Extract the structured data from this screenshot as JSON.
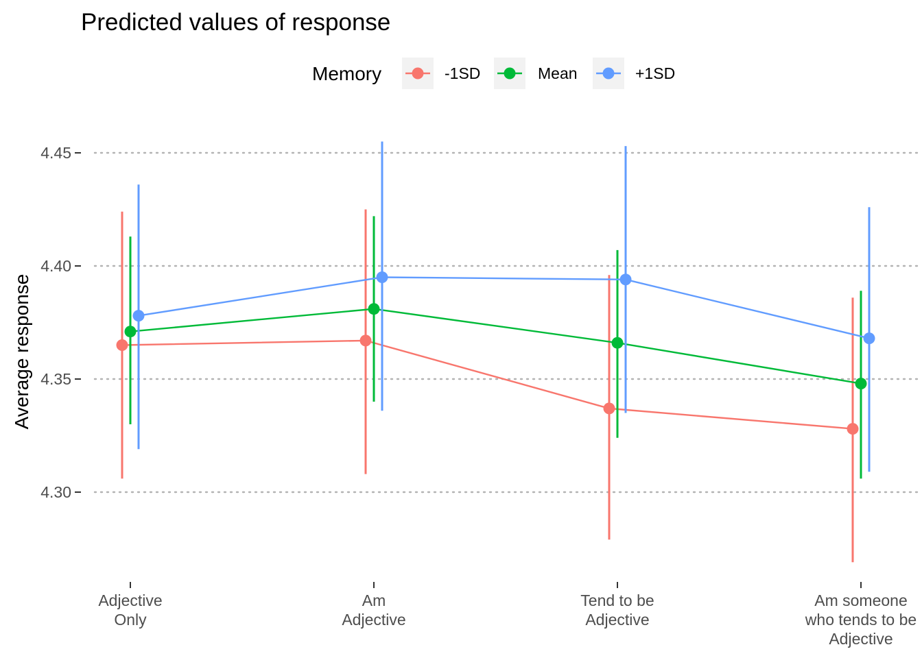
{
  "chart_data": {
    "type": "line",
    "title": "Predicted values of response",
    "xlabel": "",
    "ylabel": "Average response",
    "legend": {
      "title": "Memory",
      "position": "top"
    },
    "grid": {
      "major_y": true,
      "style": "dotted"
    },
    "ylim": [
      4.265,
      4.455
    ],
    "yticks": [
      4.3,
      4.35,
      4.4,
      4.45
    ],
    "ytick_labels": [
      "4.30",
      "4.35",
      "4.40",
      "4.45"
    ],
    "categories": [
      [
        "Adjective",
        "Only"
      ],
      [
        "Am",
        "Adjective"
      ],
      [
        "Tend to be",
        "Adjective"
      ],
      [
        "Am someone",
        "who tends to be",
        "Adjective"
      ]
    ],
    "series": [
      {
        "name": "-1SD",
        "color": "#f8766d",
        "values": [
          4.365,
          4.367,
          4.337,
          4.328
        ],
        "lower": [
          4.306,
          4.308,
          4.279,
          4.269
        ],
        "upper": [
          4.424,
          4.425,
          4.396,
          4.386
        ]
      },
      {
        "name": "Mean",
        "color": "#00ba38",
        "values": [
          4.371,
          4.381,
          4.366,
          4.348
        ],
        "lower": [
          4.33,
          4.34,
          4.324,
          4.306
        ],
        "upper": [
          4.413,
          4.422,
          4.407,
          4.389
        ]
      },
      {
        "name": "+1SD",
        "color": "#619cff",
        "values": [
          4.378,
          4.395,
          4.394,
          4.368
        ],
        "lower": [
          4.319,
          4.336,
          4.335,
          4.309
        ],
        "upper": [
          4.436,
          4.455,
          4.453,
          4.426
        ]
      }
    ]
  }
}
